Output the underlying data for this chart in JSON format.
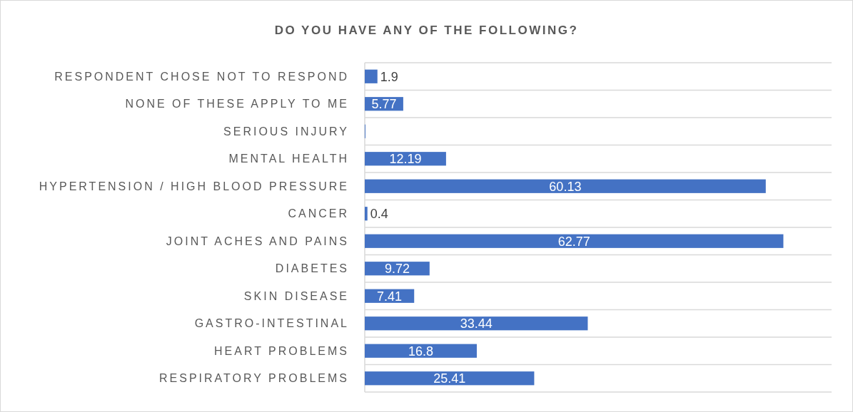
{
  "chart_data": {
    "type": "bar",
    "orientation": "horizontal",
    "title": "DO YOU HAVE ANY OF THE FOLLOWING?",
    "categories": [
      "RESPONDENT CHOSE NOT TO RESPOND",
      "NONE OF THESE APPLY TO ME",
      "SERIOUS INJURY",
      "MENTAL HEALTH",
      "HYPERTENSION / HIGH BLOOD PRESSURE",
      "CANCER",
      "JOINT ACHES AND PAINS",
      "DIABETES",
      "SKIN DISEASE",
      "GASTRO-INTESTINAL",
      "HEART PROBLEMS",
      "RESPIRATORY PROBLEMS"
    ],
    "values": [
      1.9,
      5.77,
      0.1,
      12.19,
      60.13,
      0.4,
      62.77,
      9.72,
      7.41,
      33.44,
      16.8,
      25.41
    ],
    "value_labels": [
      "1.9",
      "5.77",
      null,
      "12.19",
      "60.13",
      "0.4",
      "62.77",
      "9.72",
      "7.41",
      "33.44",
      "16.8",
      "25.41"
    ],
    "color": "#4472c4",
    "xlim": [
      0,
      70
    ],
    "tick_labels": "y",
    "grid": "y"
  }
}
